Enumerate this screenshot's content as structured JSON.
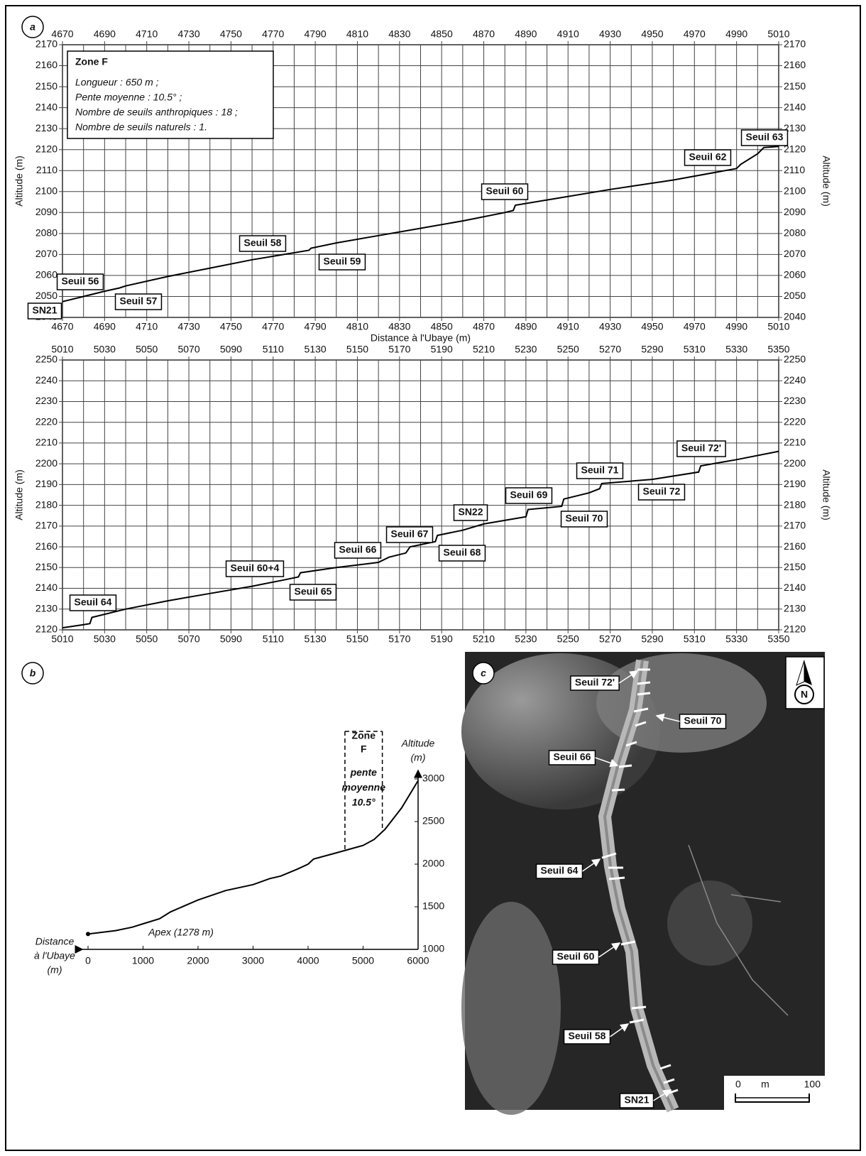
{
  "chart_data": [
    {
      "type": "line",
      "panel": "a",
      "x": [
        4670,
        4680,
        4690,
        4697,
        4700,
        4720,
        4740,
        4760,
        4772,
        4787,
        4788,
        4800,
        4820,
        4840,
        4860,
        4880,
        4884,
        4885,
        4900,
        4930,
        4960,
        4990,
        4992,
        5000,
        5003,
        5010
      ],
      "values": [
        2047.5,
        2050,
        2052.5,
        2054,
        2055,
        2059.5,
        2063.5,
        2067.5,
        2069.5,
        2072,
        2073,
        2075.5,
        2079,
        2082.5,
        2086,
        2090,
        2091,
        2093.5,
        2096,
        2101,
        2105.5,
        2111,
        2113,
        2118,
        2121,
        2121.5
      ],
      "color": "#000000",
      "grid": true,
      "xlim": [
        4670,
        5010
      ],
      "ylim": [
        2040,
        2170
      ],
      "xticks": [
        4670,
        4690,
        4710,
        4730,
        4750,
        4770,
        4790,
        4810,
        4830,
        4850,
        4870,
        4890,
        4910,
        4930,
        4950,
        4970,
        4990,
        5010
      ],
      "xminorticks": [
        4680,
        4700,
        4720,
        4740,
        4760,
        4780,
        4800,
        4820,
        4840,
        4860,
        4880,
        4900,
        4920,
        4940,
        4960,
        4980,
        5000
      ],
      "yticks": [
        2040,
        2050,
        2060,
        2070,
        2080,
        2090,
        2100,
        2110,
        2120,
        2130,
        2140,
        2150,
        2160,
        2170
      ],
      "xlabel": "Distance à l'Ubaye (m)",
      "ylabel": "Altitude (m)",
      "info": {
        "title": "Zone F",
        "lines": [
          "Longueur : 650 m ;",
          "Pente moyenne : 10.5° ;",
          "Nombre de seuils anthropiques : 18 ;",
          "Nombre de seuils naturels : 1."
        ]
      },
      "annotations": [
        "Seuil 63",
        "Seuil 62",
        "Seuil 60",
        "Seuil 58",
        "Seuil 59",
        "Seuil 56",
        "Seuil 57",
        "SN21"
      ]
    },
    {
      "type": "line",
      "x": [
        5010,
        5020,
        5023,
        5024,
        5040,
        5060,
        5080,
        5100,
        5115,
        5122,
        5123,
        5140,
        5160,
        5165,
        5173,
        5175,
        5187,
        5188,
        5200,
        5210,
        5230,
        5231,
        5247,
        5248,
        5260,
        5265,
        5266,
        5290,
        5312,
        5313,
        5330,
        5350
      ],
      "values": [
        2121,
        2122.5,
        2123,
        2126,
        2130,
        2134,
        2137.5,
        2141,
        2144,
        2145.5,
        2147.5,
        2150,
        2152.5,
        2155,
        2157,
        2160,
        2162.5,
        2165.5,
        2168,
        2171,
        2174.5,
        2178,
        2179.5,
        2183,
        2186,
        2188,
        2190.5,
        2192.5,
        2196,
        2199,
        2202,
        2206
      ],
      "color": "#000000",
      "grid": true,
      "xlim": [
        5010,
        5350
      ],
      "ylim": [
        2120,
        2250
      ],
      "xticks": [
        5010,
        5030,
        5050,
        5070,
        5090,
        5110,
        5130,
        5150,
        5170,
        5190,
        5210,
        5230,
        5250,
        5270,
        5290,
        5310,
        5330,
        5350
      ],
      "xminorticks": [
        5020,
        5040,
        5060,
        5080,
        5100,
        5120,
        5140,
        5160,
        5180,
        5200,
        5220,
        5240,
        5260,
        5280,
        5300,
        5320,
        5340
      ],
      "yticks": [
        2120,
        2130,
        2140,
        2150,
        2160,
        2170,
        2180,
        2190,
        2200,
        2210,
        2220,
        2230,
        2240,
        2250
      ],
      "ylabel": "Altitude (m)",
      "annotations": [
        "Seuil 72'",
        "Seuil 71",
        "Seuil 72",
        "Seuil 69",
        "Seuil 70",
        "SN22",
        "Seuil 67",
        "Seuil 68",
        "Seuil 66",
        "Seuil 60+4",
        "Seuil 65",
        "Seuil 64"
      ]
    },
    {
      "type": "line",
      "panel": "b",
      "x": [
        0,
        500,
        800,
        1000,
        1300,
        1500,
        2000,
        2500,
        3000,
        3300,
        3500,
        3800,
        4000,
        4100,
        4500,
        5000,
        5200,
        5400,
        5700,
        6000
      ],
      "values": [
        1180,
        1220,
        1260,
        1300,
        1360,
        1440,
        1580,
        1690,
        1760,
        1830,
        1860,
        1940,
        2000,
        2060,
        2130,
        2220,
        2290,
        2410,
        2660,
        2980
      ],
      "color": "#000000",
      "grid": false,
      "xlim": [
        0,
        6000
      ],
      "ylim": [
        1000,
        3000
      ],
      "xticks": [
        0,
        1000,
        2000,
        3000,
        4000,
        5000,
        6000
      ],
      "yticks": [
        1000,
        1500,
        2000,
        2500,
        3000
      ],
      "xlabel": [
        "Distance",
        "à l'Ubaye",
        "(m)"
      ],
      "ylabel": [
        "Altitude",
        "(m)"
      ],
      "annotations": [
        "Apex (1278 m)"
      ],
      "zone": {
        "label": [
          "Zone",
          "F"
        ],
        "slope": [
          "pente",
          "moyenne",
          "10.5°"
        ],
        "xlim": [
          4670,
          5350
        ]
      }
    }
  ],
  "photo": {
    "panel": "c",
    "labels": [
      "Seuil 72'",
      "Seuil 70",
      "Seuil 66",
      "Seuil 64",
      "Seuil 60",
      "Seuil 58",
      "SN21"
    ],
    "north": "N",
    "scale": [
      "0",
      "m",
      "100"
    ]
  }
}
